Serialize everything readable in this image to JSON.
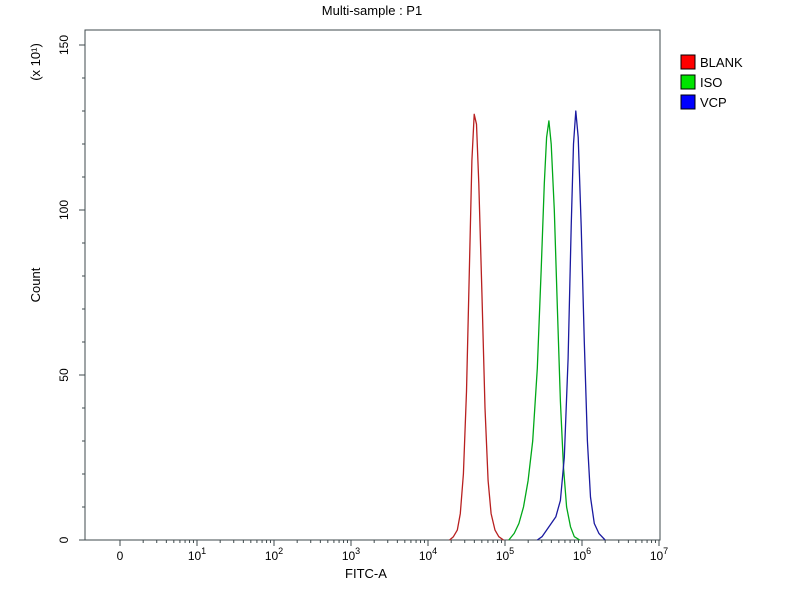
{
  "window": {
    "background": "#ffffff"
  },
  "chart_data": {
    "type": "line",
    "subtype": "flow-cytometry-histogram-overlay",
    "title": "Multi-sample : P1",
    "xlabel": "FITC-A",
    "ylabel": "Count",
    "y_scale_label": "(x 10¹)",
    "x_scale": "log",
    "grid": false,
    "legend_position": "outside-top-right",
    "frame_color": "#3f4a4d",
    "ylim": [
      0,
      155
    ],
    "y_ticks": [
      0,
      50,
      100,
      150
    ],
    "x_ticks": [
      {
        "label": "0",
        "log": 0
      },
      {
        "base": "10",
        "exp": "1",
        "log": 1
      },
      {
        "base": "10",
        "exp": "2",
        "log": 2
      },
      {
        "base": "10",
        "exp": "3",
        "log": 3
      },
      {
        "base": "10",
        "exp": "4",
        "log": 4
      },
      {
        "base": "10",
        "exp": "5",
        "log": 5
      },
      {
        "base": "10",
        "exp": "6",
        "log": 6
      },
      {
        "base": "10",
        "exp": "7",
        "log": 7
      }
    ],
    "series": [
      {
        "name": "BLANK",
        "color": "#b82020",
        "legend_color": "#ff0000",
        "peak_x": 40000,
        "peak_count": 129,
        "points_log10x_count": [
          [
            4.28,
            0
          ],
          [
            4.33,
            1
          ],
          [
            4.38,
            3
          ],
          [
            4.42,
            8
          ],
          [
            4.46,
            20
          ],
          [
            4.5,
            45
          ],
          [
            4.54,
            85
          ],
          [
            4.57,
            115
          ],
          [
            4.6,
            129
          ],
          [
            4.63,
            126
          ],
          [
            4.66,
            108
          ],
          [
            4.7,
            75
          ],
          [
            4.74,
            40
          ],
          [
            4.78,
            18
          ],
          [
            4.82,
            8
          ],
          [
            4.87,
            3
          ],
          [
            4.92,
            1
          ],
          [
            4.98,
            0
          ]
        ]
      },
      {
        "name": "ISO",
        "color": "#00a818",
        "legend_color": "#00e400",
        "peak_x": 370000,
        "peak_count": 127,
        "points_log10x_count": [
          [
            5.05,
            0
          ],
          [
            5.12,
            2
          ],
          [
            5.18,
            5
          ],
          [
            5.24,
            10
          ],
          [
            5.3,
            18
          ],
          [
            5.36,
            30
          ],
          [
            5.42,
            52
          ],
          [
            5.47,
            82
          ],
          [
            5.51,
            108
          ],
          [
            5.54,
            122
          ],
          [
            5.57,
            127
          ],
          [
            5.6,
            120
          ],
          [
            5.64,
            100
          ],
          [
            5.68,
            70
          ],
          [
            5.72,
            42
          ],
          [
            5.76,
            22
          ],
          [
            5.8,
            10
          ],
          [
            5.85,
            4
          ],
          [
            5.9,
            1
          ],
          [
            5.97,
            0
          ]
        ]
      },
      {
        "name": "VCP",
        "color": "#1a1aa0",
        "legend_color": "#0000ff",
        "peak_x": 830000,
        "peak_count": 130,
        "points_log10x_count": [
          [
            5.42,
            0
          ],
          [
            5.48,
            1
          ],
          [
            5.54,
            3
          ],
          [
            5.6,
            5
          ],
          [
            5.66,
            7
          ],
          [
            5.72,
            12
          ],
          [
            5.77,
            25
          ],
          [
            5.82,
            55
          ],
          [
            5.86,
            95
          ],
          [
            5.89,
            120
          ],
          [
            5.92,
            130
          ],
          [
            5.95,
            122
          ],
          [
            5.99,
            95
          ],
          [
            6.03,
            60
          ],
          [
            6.07,
            30
          ],
          [
            6.11,
            13
          ],
          [
            6.16,
            5
          ],
          [
            6.22,
            2
          ],
          [
            6.3,
            0
          ]
        ]
      }
    ]
  }
}
